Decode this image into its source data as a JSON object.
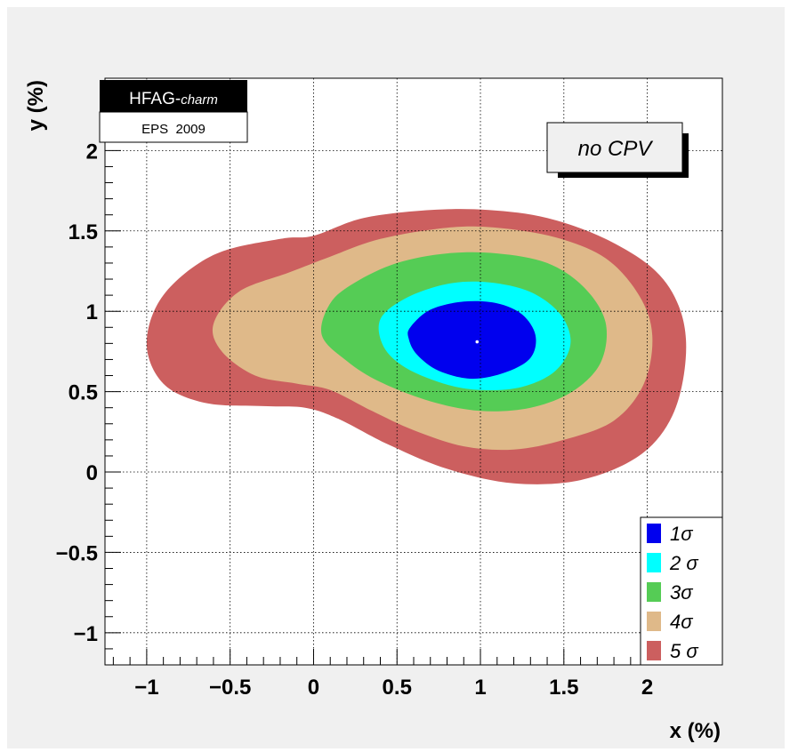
{
  "chart_data": {
    "type": "contour",
    "xlabel": "x (%)",
    "ylabel": "y (%)",
    "xlim": [
      -1.25,
      2.45
    ],
    "ylim": [
      -1.2,
      2.45
    ],
    "x_ticks": [
      "−1",
      "−0.5",
      "0",
      "0.5",
      "1",
      "1.5",
      "2"
    ],
    "x_tick_values": [
      -1,
      -0.5,
      0,
      0.5,
      1,
      1.5,
      2
    ],
    "y_ticks": [
      "−1",
      "−0.5",
      "0",
      "0.5",
      "1",
      "1.5",
      "2"
    ],
    "y_tick_values": [
      -1,
      -0.5,
      0,
      0.5,
      1,
      1.5,
      2
    ],
    "grid": true,
    "best_fit": {
      "x": 0.98,
      "y": 0.81
    },
    "contours": [
      {
        "level": "5σ",
        "color": "#cc5f5f",
        "points": [
          [
            -0.9,
            1.1
          ],
          [
            -0.6,
            1.35
          ],
          [
            -0.2,
            1.45
          ],
          [
            0.0,
            1.47
          ],
          [
            0.3,
            1.58
          ],
          [
            0.7,
            1.63
          ],
          [
            1.05,
            1.63
          ],
          [
            1.4,
            1.58
          ],
          [
            1.75,
            1.45
          ],
          [
            2.05,
            1.25
          ],
          [
            2.2,
            1.0
          ],
          [
            2.23,
            0.7
          ],
          [
            2.15,
            0.35
          ],
          [
            1.95,
            0.1
          ],
          [
            1.6,
            -0.05
          ],
          [
            1.2,
            -0.07
          ],
          [
            0.8,
            0.02
          ],
          [
            0.45,
            0.17
          ],
          [
            0.15,
            0.33
          ],
          [
            -0.05,
            0.4
          ],
          [
            -0.3,
            0.41
          ],
          [
            -0.65,
            0.43
          ],
          [
            -0.9,
            0.55
          ],
          [
            -1.0,
            0.8
          ]
        ]
      },
      {
        "level": "4σ",
        "color": "#dfb989",
        "points": [
          [
            -0.45,
            1.12
          ],
          [
            -0.15,
            1.24
          ],
          [
            0.1,
            1.34
          ],
          [
            0.4,
            1.45
          ],
          [
            0.8,
            1.52
          ],
          [
            1.1,
            1.52
          ],
          [
            1.45,
            1.46
          ],
          [
            1.75,
            1.33
          ],
          [
            1.95,
            1.1
          ],
          [
            2.03,
            0.85
          ],
          [
            1.98,
            0.55
          ],
          [
            1.8,
            0.32
          ],
          [
            1.5,
            0.2
          ],
          [
            1.2,
            0.14
          ],
          [
            0.9,
            0.16
          ],
          [
            0.6,
            0.26
          ],
          [
            0.35,
            0.38
          ],
          [
            0.1,
            0.51
          ],
          [
            -0.1,
            0.55
          ],
          [
            -0.35,
            0.6
          ],
          [
            -0.55,
            0.75
          ],
          [
            -0.6,
            0.92
          ]
        ]
      },
      {
        "level": "3σ",
        "color": "#55cc55",
        "points": [
          [
            0.1,
            1.05
          ],
          [
            0.25,
            1.18
          ],
          [
            0.5,
            1.3
          ],
          [
            0.8,
            1.36
          ],
          [
            1.1,
            1.36
          ],
          [
            1.4,
            1.3
          ],
          [
            1.62,
            1.15
          ],
          [
            1.75,
            0.93
          ],
          [
            1.72,
            0.68
          ],
          [
            1.55,
            0.5
          ],
          [
            1.3,
            0.4
          ],
          [
            1.0,
            0.38
          ],
          [
            0.7,
            0.44
          ],
          [
            0.4,
            0.56
          ],
          [
            0.2,
            0.69
          ],
          [
            0.05,
            0.85
          ]
        ]
      },
      {
        "level": "2σ",
        "color": "#00ffff",
        "points": [
          [
            0.4,
            0.95
          ],
          [
            0.55,
            1.08
          ],
          [
            0.8,
            1.17
          ],
          [
            1.05,
            1.18
          ],
          [
            1.3,
            1.12
          ],
          [
            1.48,
            0.98
          ],
          [
            1.54,
            0.8
          ],
          [
            1.45,
            0.63
          ],
          [
            1.25,
            0.53
          ],
          [
            1.0,
            0.51
          ],
          [
            0.78,
            0.55
          ],
          [
            0.55,
            0.65
          ],
          [
            0.42,
            0.78
          ]
        ]
      },
      {
        "level": "1σ",
        "color": "#0000ee",
        "points": [
          [
            0.58,
            0.9
          ],
          [
            0.7,
            1.01
          ],
          [
            0.9,
            1.06
          ],
          [
            1.1,
            1.05
          ],
          [
            1.25,
            0.98
          ],
          [
            1.33,
            0.85
          ],
          [
            1.3,
            0.71
          ],
          [
            1.15,
            0.62
          ],
          [
            0.95,
            0.58
          ],
          [
            0.75,
            0.63
          ],
          [
            0.62,
            0.73
          ],
          [
            0.57,
            0.83
          ]
        ]
      }
    ],
    "legend": {
      "placement": "bottom-right",
      "entries": [
        {
          "label": "1σ",
          "color": "#0000ee"
        },
        {
          "label": "2 σ",
          "color": "#00ffff"
        },
        {
          "label": "3σ",
          "color": "#55cc55"
        },
        {
          "label": "4σ",
          "color": "#dfb989"
        },
        {
          "label": "5 σ",
          "color": "#cc5f5f"
        }
      ]
    }
  },
  "labels": {
    "hfag_prefix": "HFAG-",
    "hfag_suffix": "charm",
    "conference": "EPS  2009",
    "cpv": "no CPV"
  }
}
